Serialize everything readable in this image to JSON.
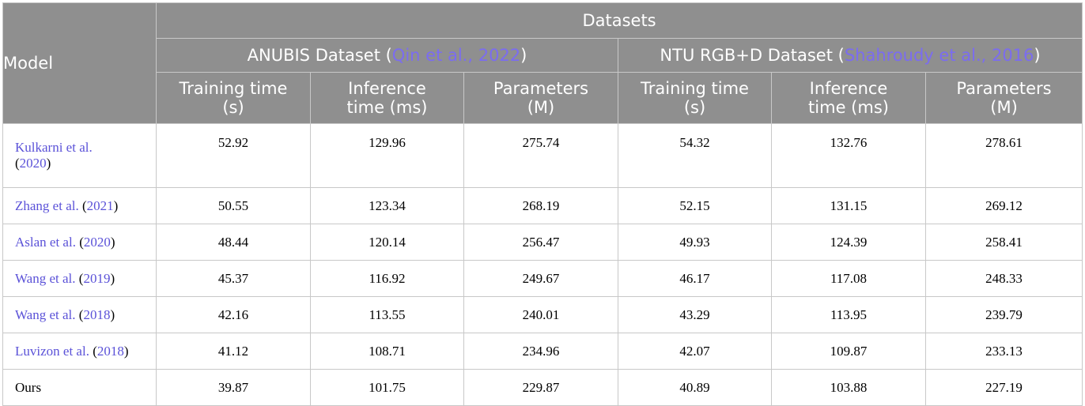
{
  "header": {
    "model": "Model",
    "datasets": "Datasets",
    "anubis": {
      "name": "ANUBIS Dataset (",
      "cite": "Qin et al., 2022",
      "close": ")"
    },
    "ntu": {
      "name": "NTU RGB+D Dataset (",
      "cite": "Shahroudy et al., 2016",
      "close": ")"
    },
    "metrics": [
      {
        "l1": "Training time",
        "l2": "(s)"
      },
      {
        "l1": "Inference",
        "l2": "time (ms)"
      },
      {
        "l1": "Parameters",
        "l2": "(M)"
      }
    ]
  },
  "rows": [
    {
      "author": "Kulkarni et al.",
      "year": "2020",
      "vals": [
        "52.92",
        "129.96",
        "275.74",
        "54.32",
        "132.76",
        "278.61"
      ]
    },
    {
      "author": "Zhang et al.",
      "year": "2021",
      "vals": [
        "50.55",
        "123.34",
        "268.19",
        "52.15",
        "131.15",
        "269.12"
      ]
    },
    {
      "author": "Aslan et al.",
      "year": "2020",
      "vals": [
        "48.44",
        "120.14",
        "256.47",
        "49.93",
        "124.39",
        "258.41"
      ]
    },
    {
      "author": "Wang et al.",
      "year": "2019",
      "vals": [
        "45.37",
        "116.92",
        "249.67",
        "46.17",
        "117.08",
        "248.33"
      ]
    },
    {
      "author": "Wang et al.",
      "year": "2018",
      "vals": [
        "42.16",
        "113.55",
        "240.01",
        "43.29",
        "113.95",
        "239.79"
      ]
    },
    {
      "author": "Luvizon et al.",
      "year": "2018",
      "vals": [
        "41.12",
        "108.71",
        "234.96",
        "42.07",
        "109.87",
        "233.13"
      ]
    },
    {
      "author": "Ours",
      "year": "",
      "vals": [
        "39.87",
        "101.75",
        "229.87",
        "40.89",
        "103.88",
        "227.19"
      ]
    }
  ],
  "colors": {
    "header_bg": "#8f8f8f",
    "citation_link": "#5b52d8",
    "header_citation": "#7b6cf0"
  }
}
